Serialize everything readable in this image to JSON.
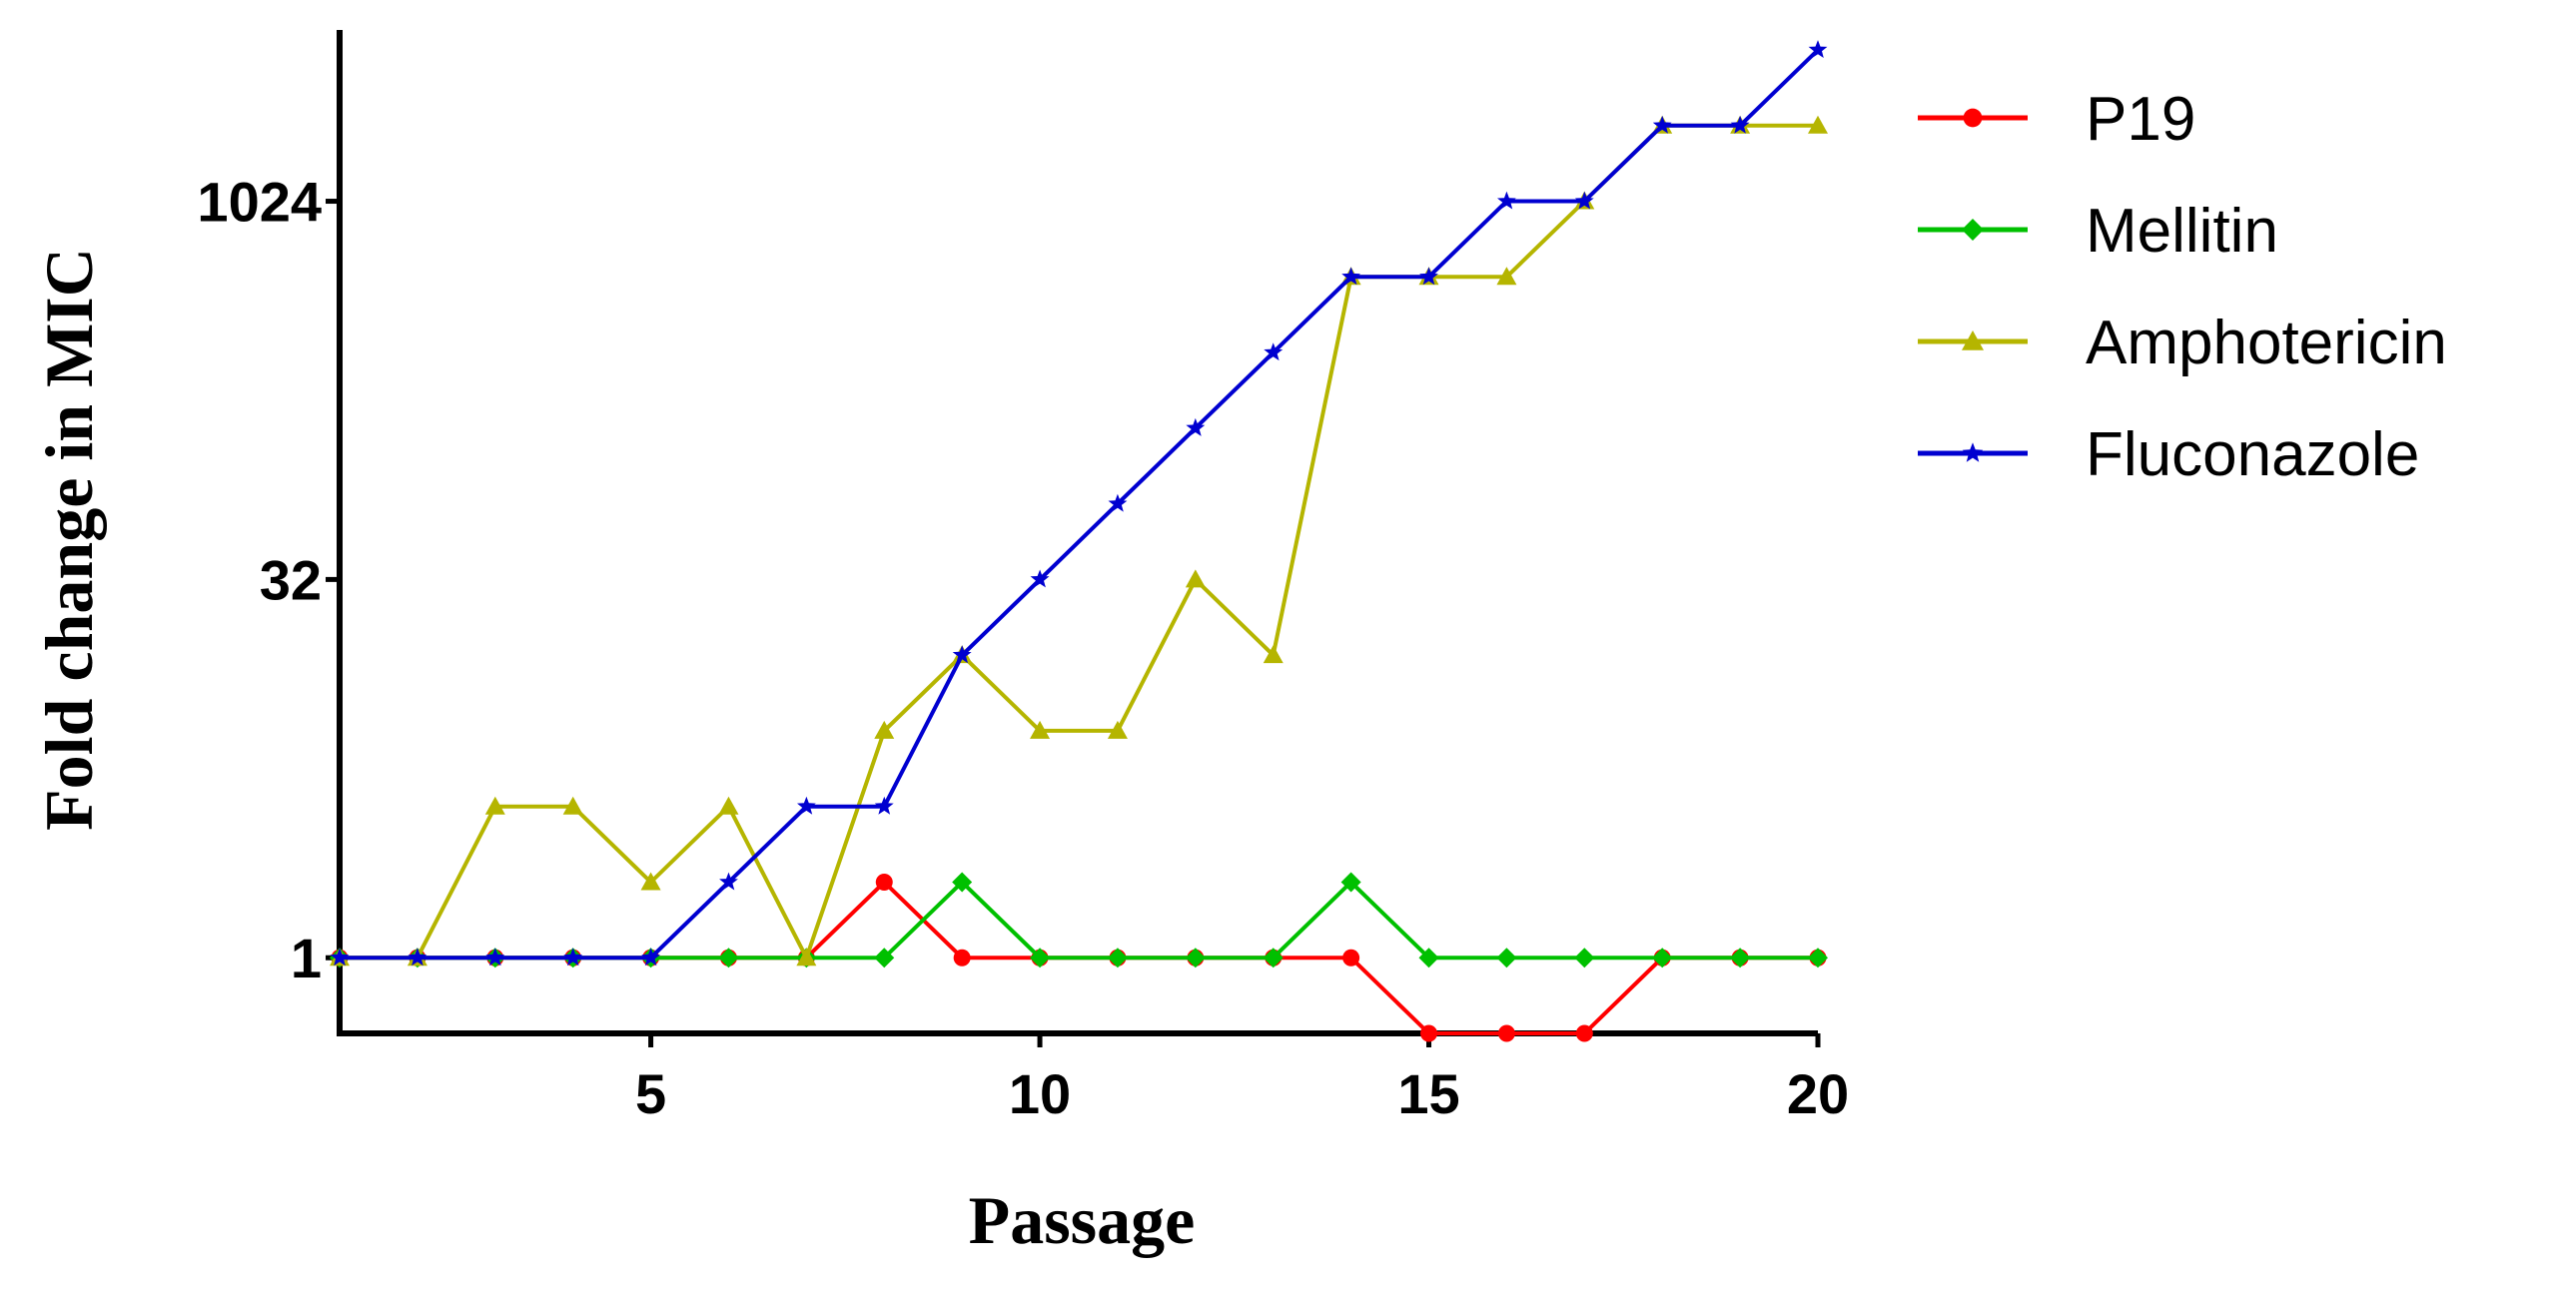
{
  "chart_data": {
    "type": "line",
    "xlabel": "Passage",
    "ylabel": "Fold change in MIC",
    "y_scale": "log2",
    "xlim": [
      1,
      20
    ],
    "ylim": [
      0.5,
      4096
    ],
    "x_ticks": [
      5,
      10,
      15,
      20
    ],
    "y_ticks": [
      {
        "value": 1,
        "label": "1"
      },
      {
        "value": 32,
        "label": "32"
      },
      {
        "value": 1024,
        "label": "1024"
      }
    ],
    "grid": false,
    "legend_position": "right",
    "x": [
      1,
      2,
      3,
      4,
      5,
      6,
      7,
      8,
      9,
      10,
      11,
      12,
      13,
      14,
      15,
      16,
      17,
      18,
      19,
      20
    ],
    "series": [
      {
        "name": "P19",
        "color": "#ff0000",
        "marker": "circle",
        "values": [
          1,
          1,
          1,
          1,
          1,
          1,
          1,
          2,
          1,
          1,
          1,
          1,
          1,
          1,
          0.5,
          0.5,
          0.5,
          1,
          1,
          1
        ]
      },
      {
        "name": "Mellitin",
        "color": "#00c000",
        "marker": "diamond",
        "values": [
          1,
          1,
          1,
          1,
          1,
          1,
          1,
          1,
          2,
          1,
          1,
          1,
          1,
          2,
          1,
          1,
          1,
          1,
          1,
          1
        ]
      },
      {
        "name": "Amphotericin",
        "color": "#b5b500",
        "marker": "triangle",
        "values": [
          1,
          1,
          4,
          4,
          2,
          4,
          1,
          8,
          16,
          8,
          8,
          32,
          16,
          512,
          512,
          512,
          1024,
          2048,
          2048,
          2048
        ]
      },
      {
        "name": "Fluconazole",
        "color": "#0000d0",
        "marker": "star",
        "values": [
          1,
          1,
          1,
          1,
          1,
          2,
          4,
          4,
          16,
          32,
          64,
          128,
          256,
          512,
          512,
          1024,
          1024,
          2048,
          2048,
          4096
        ]
      }
    ]
  }
}
